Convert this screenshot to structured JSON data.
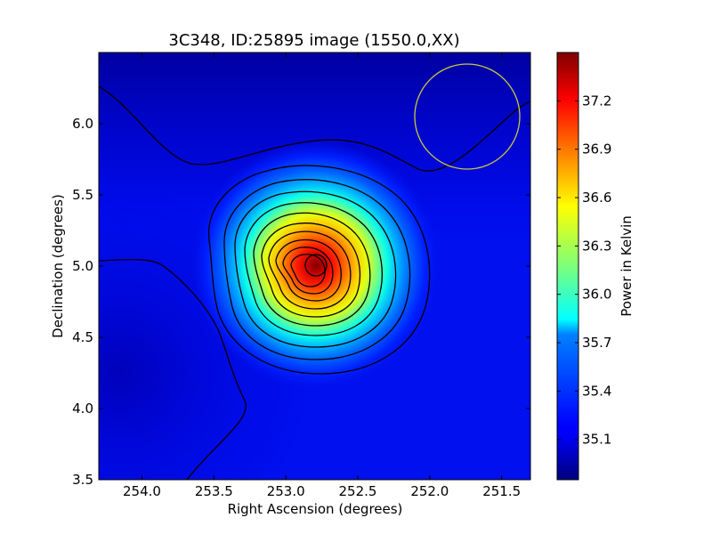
{
  "chart_data": {
    "type": "heatmap",
    "title": "3C348, ID:25895 image (1550.0,XX)",
    "xlabel": "Right Ascension (degrees)",
    "ylabel": "Declination (degrees)",
    "x_reversed": true,
    "xlim": [
      254.3,
      251.3
    ],
    "ylim": [
      3.5,
      6.5
    ],
    "xticks": [
      254.0,
      253.5,
      253.0,
      252.5,
      252.0,
      251.5
    ],
    "xtick_labels": [
      "254.0",
      "253.5",
      "253.0",
      "252.5",
      "252.0",
      "251.5"
    ],
    "yticks": [
      3.5,
      4.0,
      4.5,
      5.0,
      5.5,
      6.0
    ],
    "ytick_labels": [
      "3.5",
      "4.0",
      "4.5",
      "5.0",
      "5.5",
      "6.0"
    ],
    "colormap": "jet",
    "colorbar": {
      "label": "Power in Kelvin",
      "range": [
        34.85,
        37.5
      ],
      "ticks": [
        35.1,
        35.4,
        35.7,
        36.0,
        36.3,
        36.6,
        36.9,
        37.2
      ],
      "tick_labels": [
        "35.1",
        "35.4",
        "35.7",
        "36.0",
        "36.3",
        "36.6",
        "36.9",
        "37.2"
      ]
    },
    "source": {
      "ra": 252.78,
      "dec": 5.0,
      "peak": 37.5
    },
    "background_level": 35.0,
    "contours": "black contour lines",
    "beam_circle": {
      "ra": 251.7,
      "dec": 6.05,
      "color": "#c8c83c"
    },
    "grid": false
  }
}
